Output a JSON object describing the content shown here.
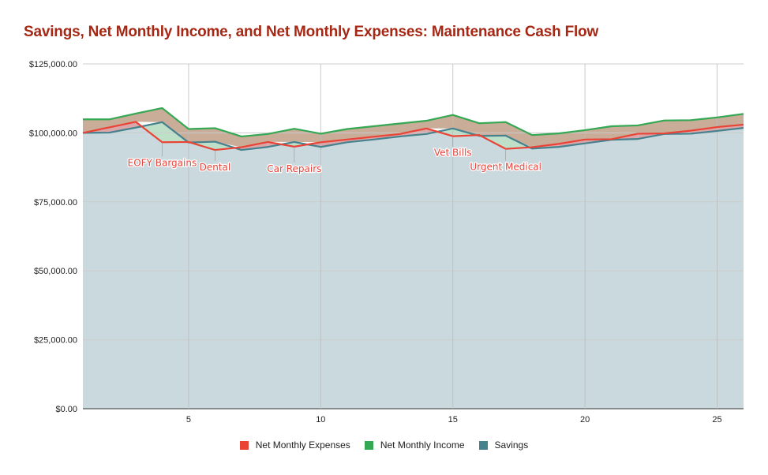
{
  "chart_data": {
    "type": "area",
    "title": "Savings, Net Monthly Income, and Net Monthly Expenses: Maintenance Cash Flow",
    "xlabel": "",
    "ylabel": "",
    "xlim": [
      1,
      26
    ],
    "ylim": [
      0,
      125000
    ],
    "x_ticks": [
      "5",
      "10",
      "15",
      "20",
      "25"
    ],
    "x_tick_values": [
      5,
      10,
      15,
      20,
      25
    ],
    "y_ticks": [
      "$0.00",
      "$25,000.00",
      "$50,000.00",
      "$75,000.00",
      "$100,000.00",
      "$125,000.00"
    ],
    "y_tick_values": [
      0,
      25000,
      50000,
      75000,
      100000,
      125000
    ],
    "grid": true,
    "legend_position": "bottom",
    "x": [
      1,
      2,
      3,
      4,
      5,
      6,
      7,
      8,
      9,
      10,
      11,
      12,
      13,
      14,
      15,
      16,
      17,
      18,
      19,
      20,
      21,
      22,
      23,
      24,
      25,
      26
    ],
    "series": [
      {
        "name": "Net Monthly Expenses",
        "color": "#ea4335",
        "values": [
          100000,
          102000,
          104000,
          96600,
          96700,
          93800,
          94800,
          96700,
          95000,
          96600,
          97600,
          98600,
          99600,
          101600,
          98800,
          99200,
          94200,
          94800,
          96000,
          97600,
          97700,
          99700,
          99800,
          100800,
          102100,
          103000
        ]
      },
      {
        "name": "Net Monthly Income",
        "color": "#34a853",
        "values": [
          104900,
          104900,
          107000,
          109000,
          101400,
          101700,
          98700,
          99600,
          101500,
          99700,
          101400,
          102400,
          103400,
          104400,
          106500,
          103500,
          103900,
          99200,
          99800,
          101000,
          102400,
          102700,
          104500,
          104600,
          105600,
          106900
        ]
      },
      {
        "name": "Savings",
        "color": "#46818e",
        "values": [
          100000,
          100100,
          101900,
          103900,
          96500,
          96800,
          93800,
          94900,
          96700,
          94900,
          96600,
          97600,
          98700,
          99600,
          101600,
          98900,
          99000,
          94300,
          94900,
          96200,
          97500,
          97800,
          99600,
          99700,
          100700,
          101800
        ]
      }
    ],
    "annotations": [
      {
        "text": "EOFY Bargains",
        "x": 4,
        "series": "Net Monthly Expenses"
      },
      {
        "text": "Dental",
        "x": 6,
        "series": "Net Monthly Expenses"
      },
      {
        "text": "Car Repairs",
        "x": 9,
        "series": "Net Monthly Expenses"
      },
      {
        "text": "Vet Bills",
        "x": 15,
        "series": "Net Monthly Expenses"
      },
      {
        "text": "Urgent Medical",
        "x": 17,
        "series": "Net Monthly Expenses"
      }
    ],
    "fills": {
      "below_savings": "#c9d9de",
      "income_band": "#c9ad98",
      "expense_over_savings": "#d9a7aa",
      "savings_over_expense": "#bfe0c8"
    }
  },
  "title_color": "#a52714"
}
